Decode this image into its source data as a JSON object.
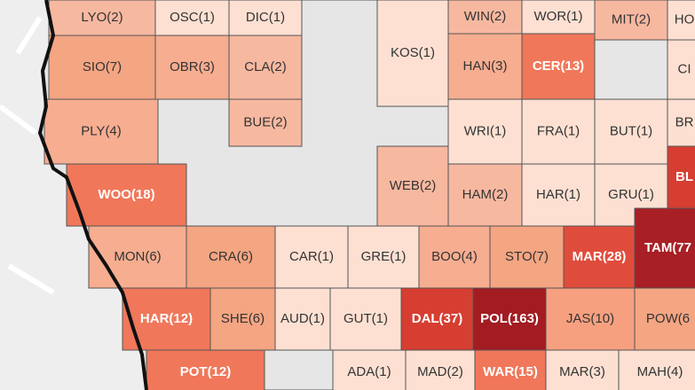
{
  "counties": [
    {
      "label": "LYO(2)",
      "color": "#f7b8a0",
      "text_color": "#333333"
    },
    {
      "label": "OSC(1)",
      "color": "#fde0d2",
      "text_color": "#333333"
    },
    {
      "label": "DIC(1)",
      "color": "#fde0d2",
      "text_color": "#333333"
    },
    {
      "label": "KOS(1)",
      "color": "#fde0d2",
      "text_color": "#333333"
    },
    {
      "label": "WIN(2)",
      "color": "#f7b8a0",
      "text_color": "#333333"
    },
    {
      "label": "WOR(1)",
      "color": "#fde0d2",
      "text_color": "#333333"
    },
    {
      "label": "MIT(2)",
      "color": "#f7b8a0",
      "text_color": "#333333"
    },
    {
      "label": "HO",
      "color": "#fde0d2",
      "text_color": "#333333"
    },
    {
      "label": "SIO(7)",
      "color": "#f4a582",
      "text_color": "#333333"
    },
    {
      "label": "OBR(3)",
      "color": "#f6ad90",
      "text_color": "#333333"
    },
    {
      "label": "CLA(2)",
      "color": "#f7b8a0",
      "text_color": "#333333"
    },
    {
      "label": "HAN(3)",
      "color": "#f6ad90",
      "text_color": "#333333"
    },
    {
      "label": "CER(13)",
      "color": "#f0775a",
      "text_color": "#ffffff"
    },
    {
      "label": "CI",
      "color": "#fde0d2",
      "text_color": "#333333"
    },
    {
      "label": "PLY(4)",
      "color": "#f6ad90",
      "text_color": "#333333"
    },
    {
      "label": "BUE(2)",
      "color": "#f7b8a0",
      "text_color": "#333333"
    },
    {
      "label": "WRI(1)",
      "color": "#fde0d2",
      "text_color": "#333333"
    },
    {
      "label": "FRA(1)",
      "color": "#fde0d2",
      "text_color": "#333333"
    },
    {
      "label": "BUT(1)",
      "color": "#fde0d2",
      "text_color": "#333333"
    },
    {
      "label": "BR",
      "color": "#fde0d2",
      "text_color": "#333333"
    },
    {
      "label": "WOO(18)",
      "color": "#f0775a",
      "text_color": "#ffffff"
    },
    {
      "label": "WEB(2)",
      "color": "#f7b8a0",
      "text_color": "#333333"
    },
    {
      "label": "HAM(2)",
      "color": "#f7b8a0",
      "text_color": "#333333"
    },
    {
      "label": "HAR(1)",
      "color": "#fde0d2",
      "text_color": "#333333"
    },
    {
      "label": "GRU(1)",
      "color": "#fde0d2",
      "text_color": "#333333"
    },
    {
      "label": "BL",
      "color": "#d63e32",
      "text_color": "#ffffff"
    },
    {
      "label": "MON(6)",
      "color": "#f6ad90",
      "text_color": "#333333"
    },
    {
      "label": "CRA(6)",
      "color": "#f4a582",
      "text_color": "#333333"
    },
    {
      "label": "CAR(1)",
      "color": "#fde0d2",
      "text_color": "#333333"
    },
    {
      "label": "GRE(1)",
      "color": "#fde0d2",
      "text_color": "#333333"
    },
    {
      "label": "BOO(4)",
      "color": "#f6ad90",
      "text_color": "#333333"
    },
    {
      "label": "STO(7)",
      "color": "#f4a582",
      "text_color": "#333333"
    },
    {
      "label": "MAR(28)",
      "color": "#e04c3c",
      "text_color": "#ffffff"
    },
    {
      "label": "TAM(77",
      "color": "#a81f25",
      "text_color": "#ffffff"
    },
    {
      "label": "HAR(12)",
      "color": "#f0775a",
      "text_color": "#ffffff"
    },
    {
      "label": "SHE(6)",
      "color": "#f4a582",
      "text_color": "#333333"
    },
    {
      "label": "AUD(1)",
      "color": "#fde0d2",
      "text_color": "#333333"
    },
    {
      "label": "GUT(1)",
      "color": "#fde0d2",
      "text_color": "#333333"
    },
    {
      "label": "DAL(37)",
      "color": "#d63e32",
      "text_color": "#ffffff"
    },
    {
      "label": "POL(163)",
      "color": "#a21c22",
      "text_color": "#ffffff"
    },
    {
      "label": "JAS(10)",
      "color": "#f6a080",
      "text_color": "#333333"
    },
    {
      "label": "POW(6",
      "color": "#f4a582",
      "text_color": "#333333"
    },
    {
      "label": "POT(12)",
      "color": "#f0775a",
      "text_color": "#ffffff"
    },
    {
      "label": "ADA(1)",
      "color": "#fde0d2",
      "text_color": "#333333"
    },
    {
      "label": "MAD(2)",
      "color": "#fde0d2",
      "text_color": "#333333"
    },
    {
      "label": "WAR(15)",
      "color": "#f0775a",
      "text_color": "#ffffff"
    },
    {
      "label": "MAR(3)",
      "color": "#fde0d2",
      "text_color": "#333333"
    },
    {
      "label": "MAH(4)",
      "color": "#fde0d2",
      "text_color": "#333333"
    }
  ]
}
